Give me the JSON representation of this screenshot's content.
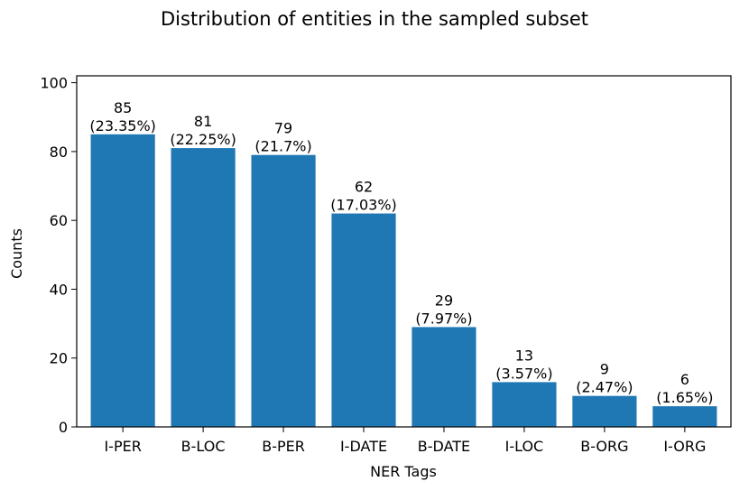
{
  "chart_data": {
    "type": "bar",
    "title": "Distribution of entities in the sampled subset",
    "xlabel": "NER Tags",
    "ylabel": "Counts",
    "categories": [
      "I-PER",
      "B-LOC",
      "B-PER",
      "I-DATE",
      "B-DATE",
      "I-LOC",
      "B-ORG",
      "I-ORG"
    ],
    "values": [
      85,
      81,
      79,
      62,
      29,
      13,
      9,
      6
    ],
    "value_labels": [
      "85",
      "81",
      "79",
      "62",
      "29",
      "13",
      "9",
      "6"
    ],
    "percent_labels": [
      "(23.35%)",
      "(22.25%)",
      "(21.7%)",
      "(17.03%)",
      "(7.97%)",
      "(3.57%)",
      "(2.47%)",
      "(1.65%)"
    ],
    "ylim": [
      0,
      102
    ],
    "yticks": [
      0,
      20,
      40,
      60,
      80,
      100
    ],
    "grid": false,
    "legend": "none",
    "bar_color": "#1f77b4"
  }
}
